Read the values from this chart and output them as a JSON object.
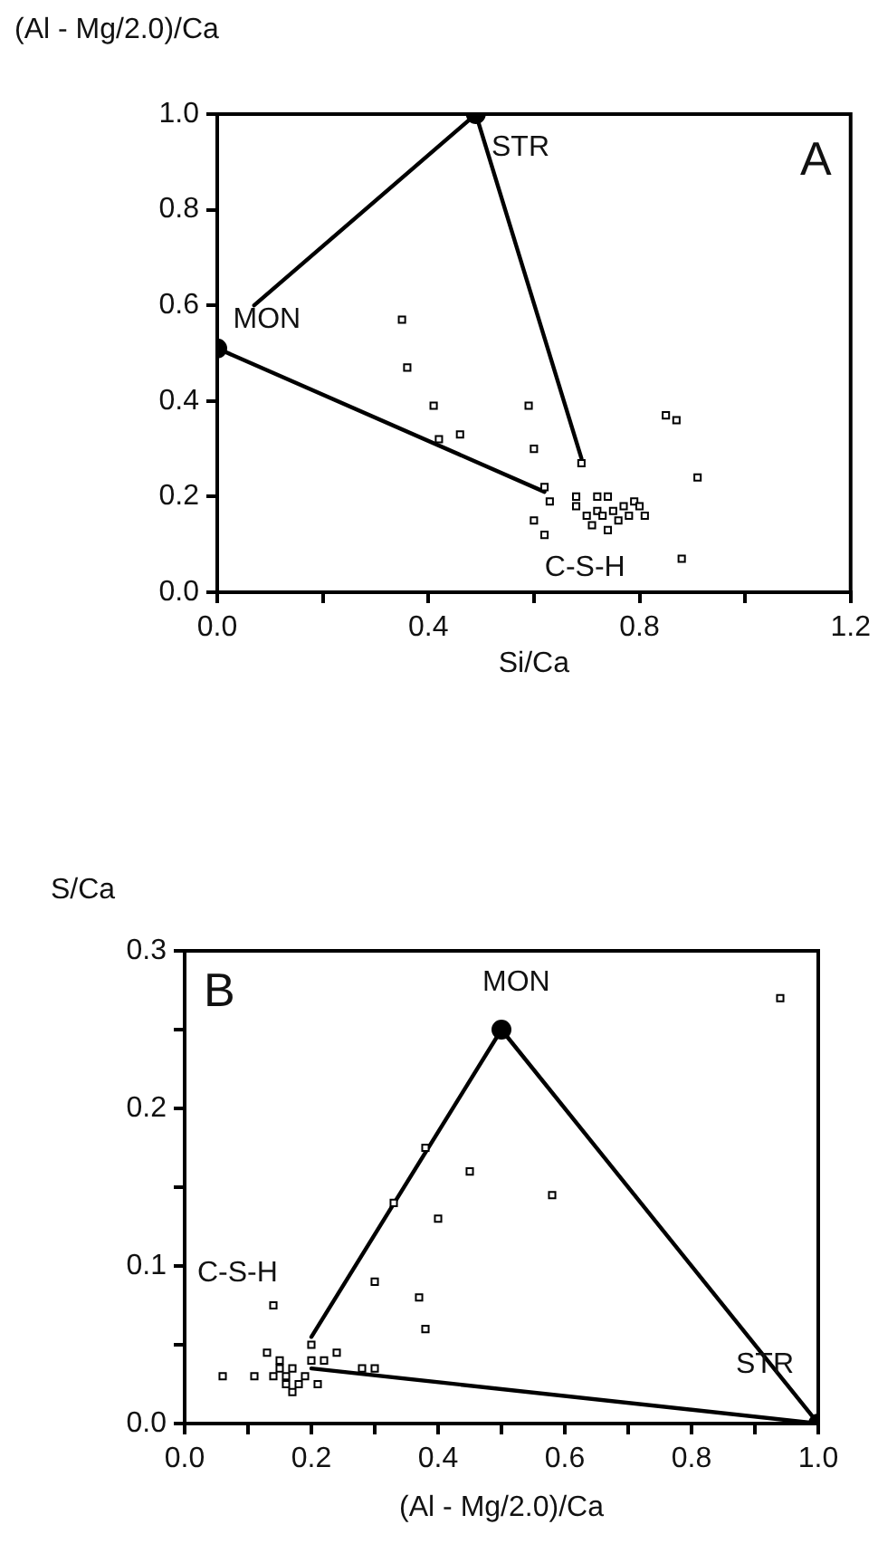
{
  "chart_data": [
    {
      "type": "scatter",
      "xlabel": "Si/Ca",
      "ylabel": "(Al - Mg/2.0)/Ca",
      "xlim": [
        0,
        1.2
      ],
      "ylim": [
        0,
        1.0
      ],
      "xticks": [
        {
          "value": 0,
          "label": "0.0"
        },
        {
          "value": 0.2,
          "label": null
        },
        0.4,
        {
          "value": 0.6,
          "label": null
        },
        0.8,
        {
          "value": 1.0,
          "label": null
        },
        1.2
      ],
      "yticks": [
        {
          "value": 0,
          "label": "0.0"
        },
        0.2,
        0.4,
        0.6,
        0.8,
        {
          "value": 1.0,
          "label": "1.0"
        }
      ],
      "annotations": [
        "A",
        "MON",
        "STR",
        "C-S-H"
      ],
      "series": [
        {
          "type": "scatter",
          "marker": "square",
          "color": "#000000",
          "x": [
            0.35,
            0.36,
            0.41,
            0.42,
            0.46,
            0.59,
            0.6,
            0.6,
            0.62,
            0.63,
            0.62,
            0.68,
            0.68,
            0.69,
            0.7,
            0.71,
            0.72,
            0.72,
            0.73,
            0.74,
            0.74,
            0.75,
            0.76,
            0.77,
            0.78,
            0.79,
            0.8,
            0.81,
            0.85,
            0.87,
            0.88,
            0.91
          ],
          "values": [
            0.57,
            0.47,
            0.39,
            0.32,
            0.33,
            0.39,
            0.3,
            0.15,
            0.12,
            0.19,
            0.22,
            0.2,
            0.18,
            0.27,
            0.16,
            0.14,
            0.2,
            0.17,
            0.16,
            0.13,
            0.2,
            0.17,
            0.15,
            0.18,
            0.16,
            0.19,
            0.18,
            0.16,
            0.37,
            0.36,
            0.07,
            0.24
          ]
        },
        {
          "type": "line",
          "marker": "none",
          "line_style": "solid",
          "color": "#000000",
          "x": [
            0.07,
            0.49
          ],
          "values": [
            0.6,
            1.0
          ]
        },
        {
          "type": "line",
          "marker": "none",
          "line_style": "solid",
          "color": "#000000",
          "x": [
            0,
            0.62
          ],
          "values": [
            0.51,
            0.21
          ]
        },
        {
          "type": "line",
          "marker": "none",
          "line_style": "solid",
          "color": "#000000",
          "x": [
            0.49,
            0.69
          ],
          "values": [
            1.0,
            0.28
          ]
        },
        {
          "type": "scatter",
          "marker": "circle",
          "color": "#000000",
          "x": [
            0,
            0.49
          ],
          "values": [
            0.51,
            1.0
          ]
        }
      ]
    },
    {
      "type": "scatter",
      "xlabel": "(Al - Mg/2.0)/Ca",
      "ylabel": "S/Ca",
      "xlim": [
        0,
        1.0
      ],
      "ylim": [
        0,
        0.3
      ],
      "xticks": [
        {
          "value": 0,
          "label": "0.0"
        },
        {
          "value": 0.1,
          "label": null
        },
        0.2,
        {
          "value": 0.3,
          "label": null
        },
        0.4,
        {
          "value": 0.5,
          "label": null
        },
        0.6,
        {
          "value": 0.7,
          "label": null
        },
        0.8,
        {
          "value": 0.9,
          "label": null
        },
        {
          "value": 1.0,
          "label": "1.0"
        }
      ],
      "yticks": [
        {
          "value": 0,
          "label": "0.0"
        },
        {
          "value": 0.05,
          "label": null
        },
        0.1,
        {
          "value": 0.15,
          "label": null
        },
        0.2,
        {
          "value": 0.25,
          "label": null
        },
        0.3
      ],
      "annotations": [
        "B",
        "MON",
        "STR",
        "C-S-H"
      ],
      "series": [
        {
          "type": "scatter",
          "marker": "square",
          "color": "#000000",
          "x": [
            0.06,
            0.11,
            0.13,
            0.14,
            0.14,
            0.15,
            0.15,
            0.16,
            0.16,
            0.17,
            0.17,
            0.18,
            0.19,
            0.2,
            0.2,
            0.21,
            0.22,
            0.24,
            0.28,
            0.3,
            0.3,
            0.33,
            0.38,
            0.37,
            0.38,
            0.4,
            0.45,
            0.58,
            0.94
          ],
          "values": [
            0.03,
            0.03,
            0.045,
            0.075,
            0.03,
            0.04,
            0.035,
            0.03,
            0.025,
            0.035,
            0.02,
            0.025,
            0.03,
            0.05,
            0.04,
            0.025,
            0.04,
            0.045,
            0.035,
            0.035,
            0.09,
            0.14,
            0.06,
            0.08,
            0.175,
            0.13,
            0.16,
            0.145,
            0.27
          ]
        },
        {
          "type": "line",
          "marker": "none",
          "line_style": "solid",
          "color": "#000000",
          "x": [
            0.2,
            0.5
          ],
          "values": [
            0.055,
            0.25
          ]
        },
        {
          "type": "line",
          "marker": "none",
          "line_style": "solid",
          "color": "#000000",
          "x": [
            0.5,
            1.0
          ],
          "values": [
            0.25,
            0
          ]
        },
        {
          "type": "line",
          "marker": "none",
          "line_style": "solid",
          "color": "#000000",
          "x": [
            0.2,
            1.0
          ],
          "values": [
            0.035,
            0
          ]
        },
        {
          "type": "scatter",
          "marker": "circle",
          "color": "#000000",
          "x": [
            0.5,
            1.0
          ],
          "values": [
            0.25,
            0
          ]
        }
      ]
    }
  ]
}
